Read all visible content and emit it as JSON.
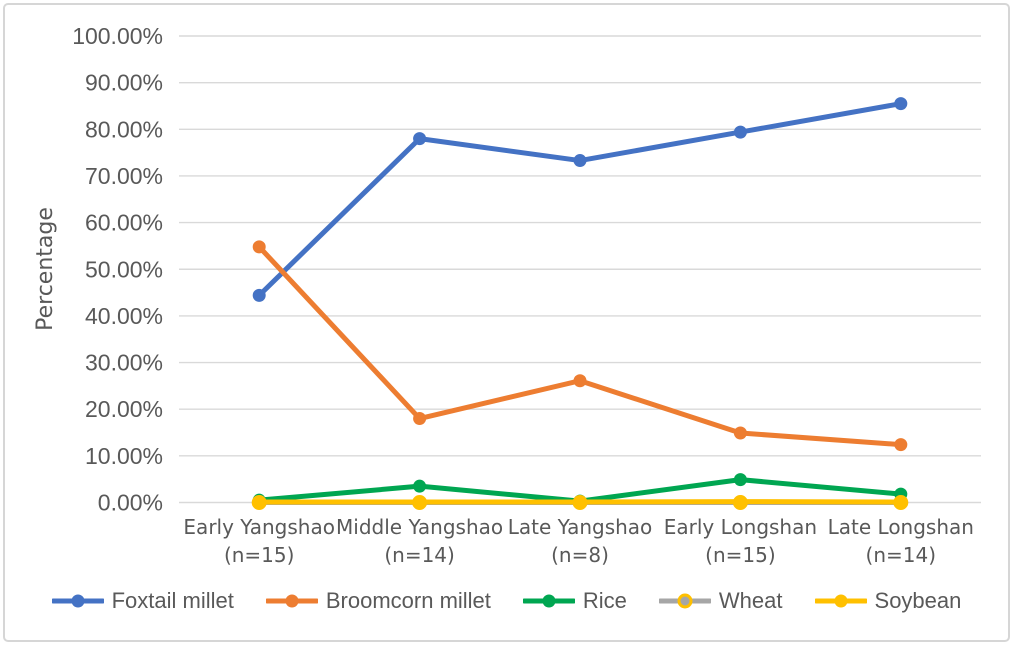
{
  "figure": {
    "background": "#FFFFFF",
    "border_color": "#D6D6D6",
    "text_color": "#595959",
    "gridline_color": "#D9D9D9"
  },
  "chart_data": {
    "type": "line",
    "title": "",
    "xlabel": "",
    "ylabel": "Percentage",
    "ylim": [
      0,
      100
    ],
    "grid": "horizontal",
    "legend_position": "bottom",
    "y_ticks": [
      {
        "value": 100,
        "label": "100.00%"
      },
      {
        "value": 90,
        "label": "90.00%"
      },
      {
        "value": 80,
        "label": "80.00%"
      },
      {
        "value": 70,
        "label": "70.00%"
      },
      {
        "value": 60,
        "label": "60.00%"
      },
      {
        "value": 50,
        "label": "50.00%"
      },
      {
        "value": 40,
        "label": "40.00%"
      },
      {
        "value": 30,
        "label": "30.00%"
      },
      {
        "value": 20,
        "label": "20.00%"
      },
      {
        "value": 10,
        "label": "10.00%"
      },
      {
        "value": 0,
        "label": "0.00%"
      }
    ],
    "categories": [
      {
        "label": "Early Yangshao",
        "sublabel": "(n=15)"
      },
      {
        "label": "Middle Yangshao",
        "sublabel": "(n=14)"
      },
      {
        "label": "Late Yangshao",
        "sublabel": "(n=8)"
      },
      {
        "label": "Early Longshan",
        "sublabel": "(n=15)"
      },
      {
        "label": "Late Longshan",
        "sublabel": "(n=14)"
      }
    ],
    "series": [
      {
        "name": "Foxtail millet",
        "color": "#4472C4",
        "values": [
          44.4,
          78.0,
          73.3,
          79.4,
          85.5
        ]
      },
      {
        "name": "Broomcorn millet",
        "color": "#ED7D31",
        "values": [
          54.8,
          18.0,
          26.1,
          14.9,
          12.4
        ]
      },
      {
        "name": "Rice",
        "color": "#00A651",
        "values": [
          0.5,
          3.5,
          0.3,
          4.9,
          1.8
        ]
      },
      {
        "name": "Wheat",
        "color": "#A6A6A6",
        "marker_stroke": "#FFC000",
        "values": [
          0.0,
          0.0,
          0.0,
          0.0,
          0.0
        ]
      },
      {
        "name": "Soybean",
        "color": "#FFC000",
        "values": [
          0.1,
          0.1,
          0.1,
          0.2,
          0.1
        ]
      }
    ]
  }
}
